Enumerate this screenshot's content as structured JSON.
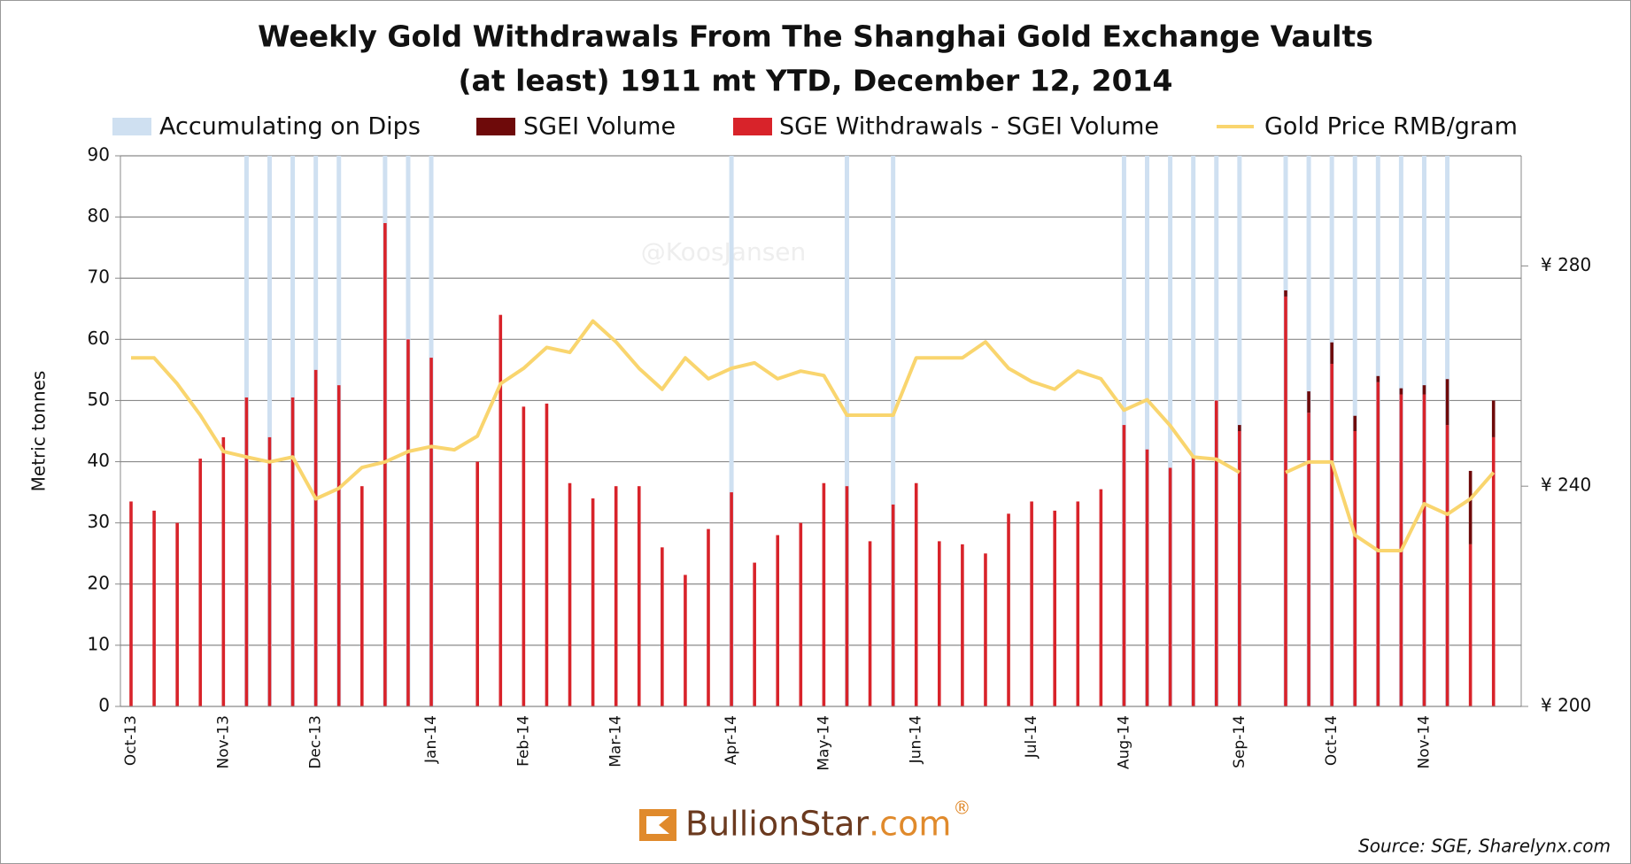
{
  "chart_data": {
    "type": "bar",
    "title": "Weekly Gold Withdrawals From The Shanghai Gold Exchange Vaults",
    "subtitle": "(at least) 1911 mt YTD, December 12, 2014",
    "y_label": "Metric tonnes",
    "watermark": "@KoosJansen",
    "logo": {
      "name": "BullionStar",
      "domain": ".com",
      "mark": "®"
    },
    "source": "Source: SGE, Sharelynx.com",
    "categories": [
      "Oct-13",
      null,
      null,
      null,
      "Nov-13",
      null,
      null,
      null,
      "Dec-13",
      null,
      null,
      null,
      null,
      "Jan-14",
      null,
      null,
      null,
      "Feb-14",
      null,
      null,
      null,
      "Mar-14",
      null,
      null,
      null,
      null,
      "Apr-14",
      null,
      null,
      null,
      "May-14",
      null,
      null,
      null,
      "Jun-14",
      null,
      null,
      null,
      null,
      "Jul-14",
      null,
      null,
      null,
      "Aug-14",
      null,
      null,
      null,
      null,
      "Sep-14",
      null,
      null,
      null,
      "Oct-14",
      null,
      null,
      null,
      "Nov-14",
      null,
      null,
      null
    ],
    "series": [
      {
        "name": "Accumulating on Dips",
        "color": "#cfe0f1",
        "values": [
          null,
          null,
          null,
          null,
          null,
          90,
          90,
          90,
          90,
          90,
          null,
          90,
          90,
          90,
          null,
          null,
          null,
          null,
          null,
          null,
          null,
          null,
          null,
          null,
          null,
          null,
          90,
          null,
          null,
          null,
          null,
          90,
          null,
          90,
          null,
          null,
          null,
          null,
          null,
          null,
          null,
          null,
          null,
          90,
          90,
          90,
          90,
          90,
          90,
          null,
          90,
          90,
          90,
          90,
          90,
          90,
          90,
          90,
          null,
          null
        ]
      },
      {
        "name": "SGEI Volume",
        "color": "#6e0a0a",
        "values": [
          null,
          null,
          null,
          null,
          null,
          null,
          null,
          null,
          null,
          null,
          null,
          null,
          null,
          null,
          null,
          null,
          null,
          null,
          null,
          null,
          null,
          null,
          null,
          null,
          null,
          null,
          null,
          null,
          null,
          null,
          null,
          null,
          null,
          null,
          null,
          null,
          null,
          null,
          null,
          null,
          null,
          null,
          null,
          null,
          null,
          null,
          null,
          null,
          1,
          null,
          1,
          3.5,
          3.5,
          2.5,
          1,
          1,
          1.5,
          7.5,
          12,
          6
        ]
      },
      {
        "name": "SGE Withdrawals - SGEI Volume",
        "color": "#d8232a",
        "values": [
          33.5,
          32,
          30,
          40.5,
          44,
          50.5,
          44,
          50.5,
          55,
          52.5,
          36,
          79,
          60,
          57,
          null,
          40,
          64,
          49,
          49.5,
          36.5,
          34,
          36,
          36,
          26,
          21.5,
          29,
          35,
          23.5,
          28,
          30,
          36.5,
          36,
          27,
          33,
          36.5,
          27,
          26.5,
          25,
          31.5,
          33.5,
          32,
          33.5,
          35.5,
          46,
          42,
          39,
          41,
          50,
          45,
          null,
          67,
          48,
          56,
          45,
          53,
          51,
          51,
          46,
          26.5,
          44
        ]
      },
      {
        "name": "Gold Price RMB/gram",
        "color": "#f9d56e",
        "type": "line",
        "axis": "y2",
        "values": [
          263.3,
          263.3,
          258.6,
          252.9,
          246.3,
          245.3,
          244.4,
          245.3,
          237.7,
          239.6,
          243.4,
          244.4,
          246.3,
          247.2,
          246.6,
          249.1,
          258.6,
          261.4,
          265.2,
          264.3,
          270,
          266.2,
          261.4,
          257.6,
          263.3,
          259.5,
          261.4,
          262.4,
          259.5,
          260.9,
          260.1,
          252.9,
          252.9,
          252.9,
          263.3,
          263.3,
          263.3,
          266.2,
          261.4,
          259,
          257.6,
          260.9,
          259.5,
          253.8,
          255.7,
          251,
          245.3,
          244.9,
          242.5,
          null,
          242.5,
          244.4,
          244.4,
          231.1,
          228.3,
          228.3,
          236.8,
          234.9,
          237.7,
          242.5
        ]
      }
    ],
    "ylim": [
      0,
      90
    ],
    "yticks": [
      0,
      10,
      20,
      30,
      40,
      50,
      60,
      70,
      80,
      90
    ],
    "y2lim": [
      200,
      300
    ],
    "y2ticks": [
      {
        "value": 200,
        "label": "¥ 200"
      },
      {
        "value": 240,
        "label": "¥ 240"
      },
      {
        "value": 280,
        "label": "¥ 280"
      }
    ],
    "grid": true,
    "legend": "top"
  }
}
